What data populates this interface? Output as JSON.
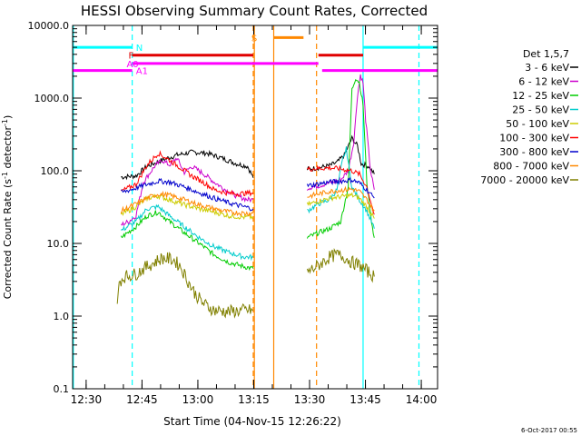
{
  "chart_data": {
    "type": "line",
    "title": "HESSI Observing Summary Count Rates, Corrected",
    "ylabel_parts": [
      "Corrected Count Rate (s",
      "-1",
      " detector",
      "-1",
      ")"
    ],
    "xlabel": "Start Time (04-Nov-15 12:26:22)",
    "date_stamp": "6-Oct-2017 00:55",
    "x_unit": "minutes from 12:26:22",
    "xlim": [
      0,
      98
    ],
    "ylim": [
      0.1,
      10000
    ],
    "yscale": "log",
    "x_ticks": [
      {
        "x": 3.63,
        "label": "12:30"
      },
      {
        "x": 18.63,
        "label": "12:45"
      },
      {
        "x": 33.63,
        "label": "13:00"
      },
      {
        "x": 48.63,
        "label": "13:15"
      },
      {
        "x": 63.63,
        "label": "13:30"
      },
      {
        "x": 78.63,
        "label": "13:45"
      },
      {
        "x": 93.63,
        "label": "14:00"
      }
    ],
    "y_ticks": [
      {
        "y": 0.1,
        "label": "0.1"
      },
      {
        "y": 1,
        "label": "1.0"
      },
      {
        "y": 10,
        "label": "10.0"
      },
      {
        "y": 100,
        "label": "100.0"
      },
      {
        "y": 1000,
        "label": "1000.0"
      },
      {
        "y": 10000,
        "label": "10000.0"
      }
    ],
    "legend": {
      "title": "Det 1,5,7",
      "placement": "right"
    },
    "series": [
      {
        "name": "3 - 6 keV",
        "color": "#000000",
        "segments": [
          [
            [
              13,
              82
            ],
            [
              17,
              85
            ],
            [
              20,
              115
            ],
            [
              24,
              140
            ],
            [
              28,
              165
            ],
            [
              32,
              180
            ],
            [
              36,
              175
            ],
            [
              40,
              150
            ],
            [
              44,
              125
            ],
            [
              47,
              115
            ],
            [
              48.5,
              80
            ]
          ],
          [
            [
              63,
              105
            ],
            [
              66,
              110
            ],
            [
              69,
              118
            ],
            [
              71,
              130
            ],
            [
              73,
              165
            ],
            [
              75,
              280
            ],
            [
              76.5,
              220
            ],
            [
              77.5,
              125
            ],
            [
              78.5,
              120
            ],
            [
              79.5,
              115
            ],
            [
              81,
              90
            ]
          ]
        ]
      },
      {
        "name": "6 - 12 keV",
        "color": "#cc00cc",
        "segments": [
          [
            [
              13,
              18
            ],
            [
              15,
              20
            ],
            [
              17,
              24
            ],
            [
              19,
              70
            ],
            [
              22,
              115
            ],
            [
              24,
              140
            ],
            [
              26,
              120
            ],
            [
              28,
              150
            ],
            [
              30,
              95
            ],
            [
              32,
              115
            ],
            [
              35,
              92
            ],
            [
              38,
              70
            ],
            [
              41,
              55
            ],
            [
              44,
              45
            ],
            [
              47,
              40
            ],
            [
              48.5,
              40
            ]
          ],
          [
            [
              63,
              58
            ],
            [
              66,
              62
            ],
            [
              69,
              68
            ],
            [
              72,
              75
            ],
            [
              74,
              100
            ],
            [
              75.5,
              250
            ],
            [
              76.5,
              1100
            ],
            [
              77.3,
              2100
            ],
            [
              78,
              1600
            ],
            [
              78.7,
              500
            ],
            [
              80,
              100
            ],
            [
              81,
              55
            ]
          ]
        ]
      },
      {
        "name": "12 - 25 keV",
        "color": "#00cc00",
        "segments": [
          [
            [
              13,
              12
            ],
            [
              17,
              17
            ],
            [
              20,
              24
            ],
            [
              23,
              27
            ],
            [
              26,
              20
            ],
            [
              30,
              14
            ],
            [
              34,
              10
            ],
            [
              38,
              7
            ],
            [
              42,
              5.5
            ],
            [
              46,
              4.8
            ],
            [
              48.5,
              4.5
            ]
          ],
          [
            [
              63,
              12
            ],
            [
              66,
              14
            ],
            [
              69,
              16
            ],
            [
              72,
              20
            ],
            [
              74,
              60
            ],
            [
              75,
              1300
            ],
            [
              76,
              1900
            ],
            [
              77,
              1650
            ],
            [
              78,
              800
            ],
            [
              79,
              70
            ],
            [
              80,
              25
            ],
            [
              81,
              12
            ]
          ]
        ]
      },
      {
        "name": "25 - 50 keV",
        "color": "#00cccc",
        "segments": [
          [
            [
              13,
              15
            ],
            [
              17,
              20
            ],
            [
              20,
              30
            ],
            [
              23,
              32
            ],
            [
              26,
              24
            ],
            [
              30,
              17
            ],
            [
              34,
              12
            ],
            [
              38,
              9
            ],
            [
              42,
              7.5
            ],
            [
              46,
              6.5
            ],
            [
              48.5,
              6.5
            ]
          ],
          [
            [
              63,
              28
            ],
            [
              66,
              35
            ],
            [
              69,
              40
            ],
            [
              71,
              55
            ],
            [
              72.5,
              140
            ],
            [
              73.5,
              200
            ],
            [
              75,
              60
            ],
            [
              77,
              40
            ],
            [
              79,
              28
            ],
            [
              81,
              16
            ]
          ]
        ]
      },
      {
        "name": "50 - 100 keV",
        "color": "#cccc00",
        "segments": [
          [
            [
              13,
              25
            ],
            [
              17,
              32
            ],
            [
              20,
              42
            ],
            [
              23,
              45
            ],
            [
              26,
              40
            ],
            [
              30,
              34
            ],
            [
              34,
              30
            ],
            [
              38,
              27
            ],
            [
              42,
              24
            ],
            [
              46,
              23
            ],
            [
              48.5,
              23
            ]
          ],
          [
            [
              63,
              34
            ],
            [
              66,
              38
            ],
            [
              69,
              42
            ],
            [
              72,
              44
            ],
            [
              75,
              46
            ],
            [
              77,
              42
            ],
            [
              79,
              32
            ],
            [
              81,
              22
            ]
          ]
        ]
      },
      {
        "name": "100 - 300 keV",
        "color": "#ff0000",
        "segments": [
          [
            [
              13,
              52
            ],
            [
              17,
              65
            ],
            [
              20,
              120
            ],
            [
              23,
              175
            ],
            [
              26,
              140
            ],
            [
              29,
              110
            ],
            [
              32,
              85
            ],
            [
              35,
              70
            ],
            [
              38,
              55
            ],
            [
              41,
              50
            ],
            [
              44,
              48
            ],
            [
              48.5,
              50
            ]
          ],
          [
            [
              63,
              105
            ],
            [
              66,
              108
            ],
            [
              69,
              110
            ],
            [
              72,
              106
            ],
            [
              75,
              100
            ],
            [
              77,
              90
            ],
            [
              79,
              60
            ],
            [
              81,
              25
            ]
          ]
        ]
      },
      {
        "name": "300 - 800 keV",
        "color": "#0000cc",
        "segments": [
          [
            [
              13,
              50
            ],
            [
              17,
              58
            ],
            [
              20,
              65
            ],
            [
              23,
              72
            ],
            [
              26,
              70
            ],
            [
              30,
              60
            ],
            [
              34,
              50
            ],
            [
              38,
              42
            ],
            [
              42,
              36
            ],
            [
              46,
              32
            ],
            [
              48.5,
              30
            ]
          ],
          [
            [
              63,
              62
            ],
            [
              66,
              66
            ],
            [
              69,
              70
            ],
            [
              72,
              72
            ],
            [
              75,
              75
            ],
            [
              77,
              68
            ],
            [
              79,
              55
            ],
            [
              81,
              42
            ]
          ]
        ]
      },
      {
        "name": "800 - 7000 keV",
        "color": "#ff8800",
        "segments": [
          [
            [
              13,
              28
            ],
            [
              17,
              35
            ],
            [
              20,
              42
            ],
            [
              23,
              48
            ],
            [
              26,
              46
            ],
            [
              30,
              40
            ],
            [
              34,
              34
            ],
            [
              38,
              30
            ],
            [
              42,
              27
            ],
            [
              46,
              26
            ],
            [
              48.5,
              26
            ]
          ],
          [
            [
              63,
              44
            ],
            [
              66,
              48
            ],
            [
              69,
              52
            ],
            [
              72,
              54
            ],
            [
              75,
              56
            ],
            [
              77,
              52
            ],
            [
              79,
              40
            ],
            [
              81,
              28
            ]
          ]
        ]
      },
      {
        "name": "7000 - 20000 keV",
        "color": "#808000",
        "segments": [
          [
            [
              12,
              1.3
            ],
            [
              12.5,
              3
            ],
            [
              14,
              3.5
            ],
            [
              17,
              3.8
            ],
            [
              19,
              4.5
            ],
            [
              22,
              5.5
            ],
            [
              24,
              6.3
            ],
            [
              27,
              6
            ],
            [
              29,
              4.8
            ],
            [
              31,
              3
            ],
            [
              33,
              2
            ],
            [
              35,
              1.5
            ],
            [
              38,
              1.2
            ],
            [
              42,
              1.15
            ],
            [
              46,
              1.2
            ],
            [
              48.5,
              1.2
            ]
          ],
          [
            [
              63,
              4
            ],
            [
              66,
              5
            ],
            [
              69,
              6.5
            ],
            [
              71,
              7
            ],
            [
              73,
              6.5
            ],
            [
              75,
              5.5
            ],
            [
              77,
              5
            ],
            [
              79,
              4.2
            ],
            [
              81,
              3.5
            ]
          ]
        ]
      }
    ],
    "state_bars": [
      {
        "label": "N",
        "color": "#00ffff",
        "y": 5000,
        "spans": [
          [
            0,
            16
          ],
          [
            78,
            98
          ]
        ],
        "label_at": 17
      },
      {
        "label": "F",
        "color": "#e00000",
        "y": 3900,
        "spans": [
          [
            16,
            48.5
          ],
          [
            66,
            78
          ]
        ],
        "label_at": 15
      },
      {
        "label": "A0",
        "color": "#ff00ff",
        "y": 3000,
        "spans": [
          [
            16,
            66
          ]
        ],
        "label_at": 14.5
      },
      {
        "label": "A1",
        "color": "#ff00ff",
        "y": 2400,
        "spans": [
          [
            0,
            16
          ],
          [
            67,
            98
          ]
        ],
        "label_at": 17
      },
      {
        "label": "S",
        "color": "#ff8800",
        "y": 6800,
        "spans": [
          [
            54,
            62
          ]
        ],
        "label_at": 48
      }
    ],
    "vertical_markers": [
      {
        "x": 0.2,
        "color": "#00ffff",
        "style": "solid"
      },
      {
        "x": 16,
        "color": "#00ffff",
        "style": "dashed"
      },
      {
        "x": 78,
        "color": "#00ffff",
        "style": "solid"
      },
      {
        "x": 93,
        "color": "#00ffff",
        "style": "dashed"
      },
      {
        "x": 48.5,
        "color": "#ff8800",
        "style": "dashed"
      },
      {
        "x": 48.8,
        "color": "#ff8800",
        "style": "solid"
      },
      {
        "x": 54,
        "color": "#ff8800",
        "style": "solid"
      },
      {
        "x": 65.5,
        "color": "#ff8800",
        "style": "dashed"
      }
    ]
  }
}
